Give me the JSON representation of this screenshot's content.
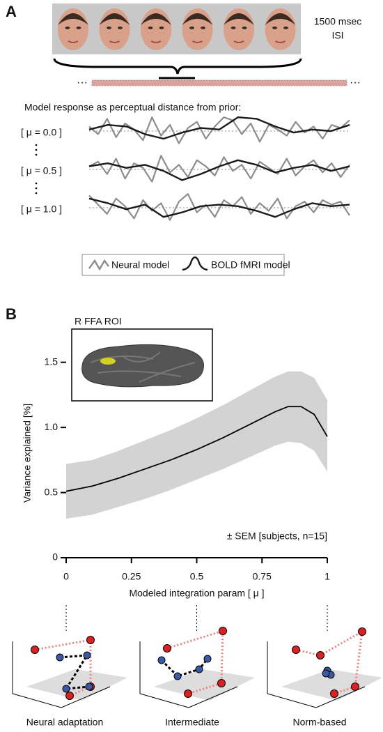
{
  "figure": {
    "panel_labels": [
      "A",
      "B"
    ],
    "isi": [
      "1500 msec",
      "ISI"
    ],
    "inset_title": "R FFA ROI",
    "sem_note": "± SEM [subjects, n=15]",
    "diagram_labels": [
      "Neural adaptation",
      "Intermediate",
      "Norm-based"
    ]
  },
  "chart_data": [
    {
      "type": "line",
      "xlabel": "Modeled integration param [ μ ]",
      "ylabel": "Variance explained [%]",
      "x": [
        0,
        0.1,
        0.2,
        0.3,
        0.4,
        0.5,
        0.6,
        0.7,
        0.8,
        0.85,
        0.9,
        0.95,
        1
      ],
      "series": [
        {
          "color": "#000000",
          "values": [
            0.51,
            0.55,
            0.61,
            0.68,
            0.75,
            0.83,
            0.92,
            1.02,
            1.12,
            1.16,
            1.16,
            1.1,
            0.93
          ]
        }
      ],
      "band": {
        "color": "#d3d3d3",
        "upper": [
          0.72,
          0.75,
          0.82,
          0.9,
          0.98,
          1.07,
          1.17,
          1.28,
          1.39,
          1.43,
          1.43,
          1.38,
          1.21
        ],
        "lower": [
          0.3,
          0.33,
          0.39,
          0.45,
          0.52,
          0.6,
          0.68,
          0.77,
          0.86,
          0.89,
          0.88,
          0.82,
          0.66
        ]
      },
      "xlim": [
        0,
        1
      ],
      "xticks": [
        0,
        0.25,
        0.5,
        0.75,
        1
      ],
      "ylim": [
        0,
        1.6
      ],
      "yticks": [
        0,
        0.5,
        {
          "value": 1,
          "label": "1.0"
        },
        1.5
      ]
    },
    {
      "type": "traces",
      "title": "Model response as perceptual distance from prior:",
      "legend": [
        "Neural model",
        "BOLD fMRI model"
      ],
      "colors": [
        "#8c8c8c",
        "#1a1a1a"
      ],
      "ylim": [
        -1,
        1
      ],
      "rows": [
        {
          "label": "[ μ = 0.0 ]",
          "neural": [
            0.3,
            -0.2,
            0.8,
            -0.4,
            0.5,
            0.1,
            -0.6,
            0.9,
            -0.3,
            0.4,
            -0.8,
            0.2,
            0.6,
            -0.5,
            0.3,
            0.9,
            0.7,
            -0.2,
            0.5,
            -0.7,
            0.4,
            0.1,
            -0.3,
            0.6,
            -0.1,
            0.3,
            -0.5,
            0.4,
            0.2,
            0.7
          ],
          "bold": [
            0.1,
            0.4,
            0.3,
            -0.2,
            -0.5,
            -0.1,
            0.2,
            0.1,
            0.9,
            0.8,
            0.3,
            -0.1,
            0.1,
            0.0,
            0.4
          ]
        },
        {
          "label": "[ μ = 0.5 ]",
          "neural": [
            0.2,
            0.5,
            -0.3,
            0.7,
            -0.6,
            0.4,
            0.1,
            -0.8,
            0.9,
            -0.2,
            0.3,
            -0.5,
            0.6,
            0.2,
            -0.4,
            0.8,
            -0.1,
            0.3,
            -0.6,
            0.5,
            0.1,
            -0.3,
            0.7,
            -0.4,
            0.2,
            0.6,
            -0.2,
            0.4,
            -0.5,
            0.3
          ],
          "bold": [
            0.2,
            0.4,
            0.1,
            0.3,
            -0.1,
            -0.7,
            -0.3,
            0.2,
            0.6,
            0.3,
            -0.2,
            0.1,
            0.3,
            -0.1,
            0.2
          ]
        },
        {
          "label": "[ μ = 1.0 ]",
          "neural": [
            0.8,
            0.2,
            -0.4,
            0.6,
            0.1,
            -0.7,
            0.5,
            -0.2,
            0.3,
            -0.8,
            0.4,
            0.9,
            -0.3,
            0.2,
            -0.6,
            0.5,
            0.1,
            0.7,
            -0.4,
            0.3,
            -0.2,
            0.6,
            -0.7,
            0.1,
            0.4,
            -0.3,
            0.5,
            0.2,
            0.4,
            -0.5
          ],
          "bold": [
            0.6,
            0.3,
            -0.1,
            0.2,
            -0.6,
            -0.3,
            0.1,
            0.2,
            0.1,
            -0.2,
            -0.6,
            -0.1,
            0.3,
            0.1,
            0.2
          ]
        }
      ]
    }
  ]
}
